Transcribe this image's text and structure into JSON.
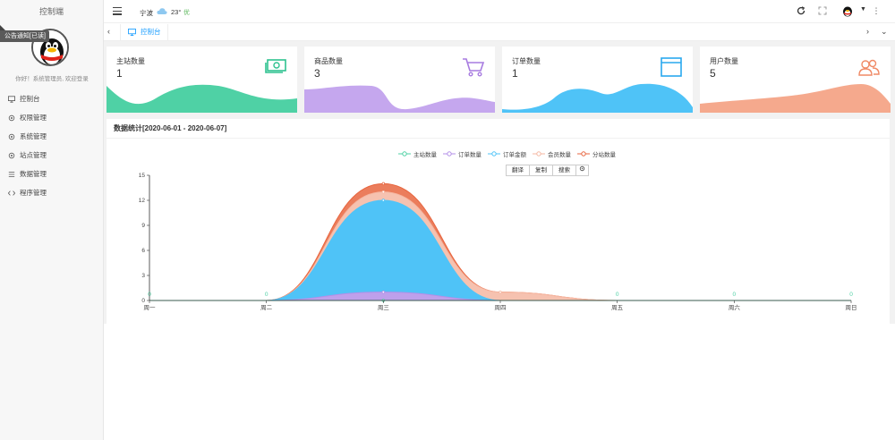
{
  "sidebar": {
    "title": "控制端",
    "notice": "公告通知[已读]",
    "greeting": "你好！系统管理员, 欢迎登录",
    "items": [
      {
        "label": "控制台",
        "icon": "monitor-icon"
      },
      {
        "label": "权限管理",
        "icon": "settings-icon"
      },
      {
        "label": "系统管理",
        "icon": "settings-icon"
      },
      {
        "label": "站点管理",
        "icon": "settings-icon"
      },
      {
        "label": "数据管理",
        "icon": "list-icon"
      },
      {
        "label": "程序管理",
        "icon": "code-icon"
      }
    ]
  },
  "header": {
    "city": "宁波",
    "temperature": "23°",
    "aqi": "优",
    "weather_icon": "cloud-icon"
  },
  "tabs": {
    "active": "控制台"
  },
  "cards": [
    {
      "title": "主站数量",
      "value": "1",
      "color": "#4fd1a5",
      "icon": "money-icon"
    },
    {
      "title": "商品数量",
      "value": "3",
      "color": "#c5a7ee",
      "icon": "cart-icon"
    },
    {
      "title": "订单数量",
      "value": "1",
      "color": "#4fc3f7",
      "icon": "window-icon"
    },
    {
      "title": "用户数量",
      "value": "5",
      "color": "#f5a98d",
      "icon": "users-icon"
    }
  ],
  "stats": {
    "title": "数据统计[2020-06-01 - 2020-06-07]",
    "toolbox": [
      "翻译",
      "复制",
      "搜索"
    ]
  },
  "chart_data": {
    "type": "area",
    "stacked": true,
    "categories": [
      "周一",
      "周二",
      "周三",
      "周四",
      "周五",
      "周六",
      "周日"
    ],
    "ylim": [
      0,
      15
    ],
    "yticks": [
      0,
      3,
      6,
      9,
      12,
      15
    ],
    "series": [
      {
        "name": "主站数量",
        "color": "#4fd1a5",
        "values": [
          0,
          0,
          0,
          0,
          0,
          0,
          0
        ]
      },
      {
        "name": "订单数量",
        "color": "#b38fe8",
        "values": [
          0,
          0,
          1,
          0,
          0,
          0,
          0
        ]
      },
      {
        "name": "订单金额",
        "color": "#4fc3f7",
        "values": [
          0,
          0,
          11,
          0,
          0,
          0,
          0
        ]
      },
      {
        "name": "会员数量",
        "color": "#f5b7a2",
        "values": [
          0,
          0,
          1,
          1,
          0,
          0,
          0
        ]
      },
      {
        "name": "分站数量",
        "color": "#e8663f",
        "values": [
          0,
          0,
          1,
          0,
          0,
          0,
          0
        ]
      }
    ],
    "point_labels": [
      "0",
      "0",
      "",
      "",
      "0",
      "0",
      "0"
    ],
    "legend_position": "top-center",
    "grid": false
  }
}
